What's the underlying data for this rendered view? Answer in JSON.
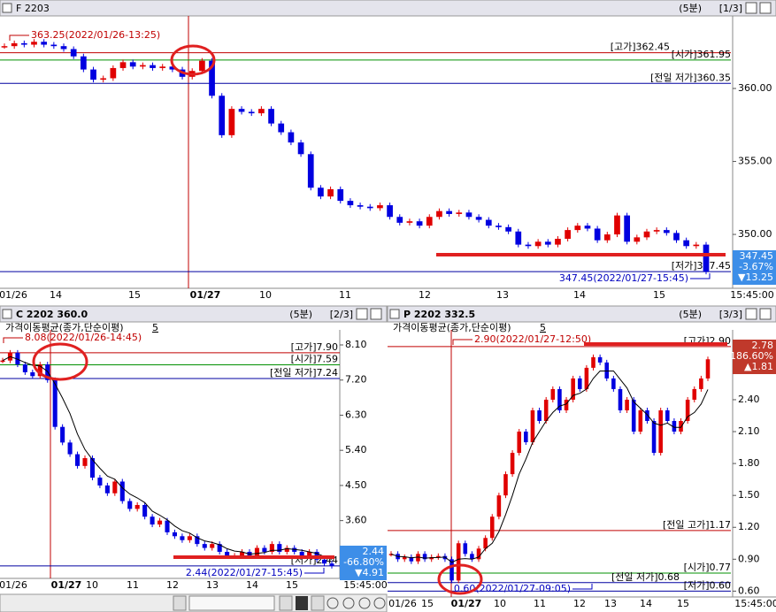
{
  "panels": [
    {
      "symbol": "F 2203",
      "period": "(5분)",
      "page": "[1/3]",
      "ylim": [
        346.55,
        364.85
      ],
      "yticks": [
        {
          "value": 360,
          "label": "360.00"
        },
        {
          "value": 355,
          "label": "355.00"
        },
        {
          "value": 350,
          "label": "350.00"
        }
      ],
      "xlabels": [
        "01/26",
        "14",
        "15",
        "01/27",
        "10",
        "11",
        "12",
        "13",
        "14",
        "15",
        "15:45:00"
      ],
      "high_note": "363.25(2022/01/26-13:25)",
      "low_note": "347.45(2022/01/27-15:45)",
      "levels": [
        {
          "label": "[고가]362.45",
          "value": 362.45,
          "color": "#c00000"
        },
        {
          "label": "[시가]361.95",
          "value": 361.95,
          "color": "#009000"
        },
        {
          "label": "[전일 저가]360.35",
          "value": 360.35,
          "color": "#0000a0"
        },
        {
          "label": "[저가]347.45",
          "value": 347.45,
          "color": "#0000a0"
        }
      ],
      "quote": {
        "price": "347.45",
        "change": "-3.67%",
        "diff": "▼13.25",
        "color": "#3d8ee8"
      },
      "closes": [
        362.9,
        363.1,
        363.0,
        363.2,
        363.0,
        362.9,
        362.7,
        362.2,
        361.3,
        360.6,
        360.7,
        361.4,
        361.8,
        361.5,
        361.6,
        361.4,
        361.5,
        361.3,
        360.8,
        361.2,
        361.9,
        359.5,
        356.8,
        358.6,
        358.4,
        358.3,
        358.6,
        357.6,
        357.0,
        356.3,
        355.5,
        353.2,
        352.6,
        353.1,
        352.3,
        352.0,
        351.9,
        351.8,
        352.0,
        351.2,
        350.8,
        350.9,
        350.6,
        351.2,
        351.6,
        351.4,
        351.5,
        351.2,
        351.0,
        350.6,
        350.5,
        350.2,
        349.3,
        349.2,
        349.5,
        349.3,
        349.7,
        350.3,
        350.6,
        350.4,
        349.6,
        350.0,
        351.3,
        349.5,
        349.8,
        350.2,
        350.3,
        350.1,
        349.6,
        349.2,
        349.3,
        347.45
      ]
    },
    {
      "symbol": "C 2202 360.0",
      "period": "(5분)",
      "page": "[2/3]",
      "indicator": "가격이동평균(종가,단순이평)",
      "indicator_period": "5",
      "ylim": [
        2.21,
        8.44
      ],
      "yticks": [
        {
          "value": 8.1,
          "label": "8.10"
        },
        {
          "value": 7.2,
          "label": "7.20"
        },
        {
          "value": 6.3,
          "label": "6.30"
        },
        {
          "value": 5.4,
          "label": "5.40"
        },
        {
          "value": 4.5,
          "label": "4.50"
        },
        {
          "value": 3.6,
          "label": "3.60"
        }
      ],
      "xlabels": [
        "01/26",
        "01/27",
        "10",
        "11",
        "12",
        "13",
        "14",
        "15",
        "15:45:00"
      ],
      "high_note": "8.08(2022/01/26-14:45)",
      "low_note": "2.44(2022/01/27-15:45)",
      "levels": [
        {
          "label": "[고가]7.90",
          "value": 7.9,
          "color": "#c00000"
        },
        {
          "label": "[시가]7.59",
          "value": 7.59,
          "color": "#009000"
        },
        {
          "label": "[전일 저가]7.24",
          "value": 7.24,
          "color": "#0000a0"
        },
        {
          "label": "[저가]2.44",
          "value": 2.44,
          "color": "#0000a0"
        }
      ],
      "quote": {
        "price": "2.44",
        "change": "-66.80%",
        "diff": "▼4.91",
        "color": "#3d8ee8"
      },
      "closes": [
        7.7,
        7.9,
        7.6,
        7.4,
        7.3,
        7.6,
        7.2,
        6.0,
        5.6,
        5.3,
        5.0,
        5.2,
        4.7,
        4.5,
        4.3,
        4.6,
        4.1,
        3.9,
        4.0,
        3.7,
        3.5,
        3.6,
        3.3,
        3.2,
        3.1,
        3.2,
        3.0,
        2.9,
        3.0,
        2.8,
        2.7,
        2.7,
        2.8,
        2.7,
        2.9,
        2.8,
        3.0,
        2.8,
        2.9,
        2.8,
        2.7,
        2.8,
        2.6,
        2.5,
        2.44
      ]
    },
    {
      "symbol": "P 2202 332.5",
      "period": "(5분)",
      "page": "[3/3]",
      "indicator": "가격이동평균(종가,단순이평)",
      "indicator_period": "5",
      "ylim": [
        0.57,
        3.04
      ],
      "yticks": [
        {
          "value": 2.4,
          "label": "2.40"
        },
        {
          "value": 2.1,
          "label": "2.10"
        },
        {
          "value": 1.8,
          "label": "1.80"
        },
        {
          "value": 1.5,
          "label": "1.50"
        },
        {
          "value": 1.2,
          "label": "1.20"
        },
        {
          "value": 0.9,
          "label": "0.90"
        },
        {
          "value": 0.6,
          "label": "0.60"
        }
      ],
      "xlabels": [
        "01/26",
        "15",
        "01/27",
        "10",
        "11",
        "12",
        "13",
        "14",
        "15",
        "15:45:00"
      ],
      "high_note": "2.90(2022/01/27-12:50)",
      "low_note": "0.60(2022/01/27-09:05)",
      "levels": [
        {
          "label": "[고가]2.90",
          "value": 2.9,
          "color": "#c00000"
        },
        {
          "label": "[전일 고가]1.17",
          "value": 1.17,
          "color": "#c00000"
        },
        {
          "label": "[시가]0.77",
          "value": 0.77,
          "color": "#009000"
        },
        {
          "label": "[전일 저가]0.68",
          "value": 0.68,
          "color": "#0000a0"
        },
        {
          "label": "[저가]0.60",
          "value": 0.6,
          "color": "#0000a0"
        }
      ],
      "quote": {
        "price": "2.78",
        "change": "+186.60%",
        "diff": "▲1.81",
        "color": "#c0392b"
      },
      "closes": [
        0.95,
        0.9,
        0.92,
        0.88,
        0.95,
        0.9,
        0.92,
        0.93,
        0.9,
        0.7,
        1.05,
        0.95,
        0.9,
        1.0,
        1.1,
        1.3,
        1.5,
        1.7,
        1.9,
        2.1,
        2.0,
        2.3,
        2.2,
        2.4,
        2.5,
        2.3,
        2.4,
        2.6,
        2.5,
        2.7,
        2.8,
        2.75,
        2.6,
        2.5,
        2.3,
        2.4,
        2.1,
        2.3,
        2.2,
        1.9,
        2.3,
        2.2,
        2.1,
        2.2,
        2.4,
        2.5,
        2.6,
        2.78
      ]
    }
  ]
}
